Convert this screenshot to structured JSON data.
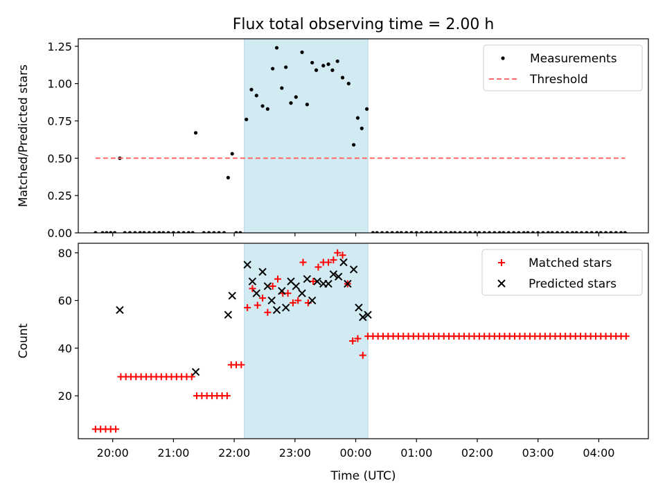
{
  "figure": {
    "title": "Flux total observing time = 2.00 h",
    "xlabel": "Time (UTC)"
  },
  "colors": {
    "highlight": "#add8e6",
    "measurements": "#000000",
    "threshold": "#ff6666",
    "matched": "#ff0000",
    "predicted": "#000000"
  },
  "chart_data": [
    {
      "type": "scatter",
      "ylabel": "Matched/Predicted stars",
      "ylim": [
        0,
        1.3
      ],
      "yticks": [
        0.0,
        0.25,
        0.5,
        0.75,
        1.0,
        1.25
      ],
      "ytick_labels": [
        "0.00",
        "0.25",
        "0.50",
        "0.75",
        "1.00",
        "1.25"
      ],
      "xlim": [
        "19:26",
        "04:49"
      ],
      "xticks": [
        "20:00",
        "21:00",
        "22:00",
        "23:00",
        "00:00",
        "01:00",
        "02:00",
        "03:00",
        "04:00"
      ],
      "xtick_labels_shown": false,
      "shaded_span": [
        "22:10",
        "00:12"
      ],
      "legend": {
        "placement": "upper right",
        "entries": [
          "Measurements",
          "Threshold"
        ]
      },
      "series": [
        {
          "name": "Measurements",
          "marker": "dot",
          "points": [
            [
              "19:43",
              0
            ],
            [
              "19:50",
              0
            ],
            [
              "19:54",
              0
            ],
            [
              "19:58",
              0
            ],
            [
              "20:02",
              0
            ],
            [
              "20:07",
              0.5
            ],
            [
              "20:12",
              0
            ],
            [
              "20:17",
              0
            ],
            [
              "20:22",
              0
            ],
            [
              "20:27",
              0
            ],
            [
              "20:31",
              0
            ],
            [
              "20:36",
              0
            ],
            [
              "20:41",
              0
            ],
            [
              "20:46",
              0
            ],
            [
              "20:50",
              0
            ],
            [
              "20:55",
              0
            ],
            [
              "21:00",
              0
            ],
            [
              "21:05",
              0
            ],
            [
              "21:10",
              0
            ],
            [
              "21:15",
              0
            ],
            [
              "21:19",
              0
            ],
            [
              "21:22",
              0.67
            ],
            [
              "21:30",
              0
            ],
            [
              "21:35",
              0
            ],
            [
              "21:40",
              0
            ],
            [
              "21:45",
              0
            ],
            [
              "21:50",
              0
            ],
            [
              "21:54",
              0.37
            ],
            [
              "21:58",
              0.53
            ],
            [
              "22:02",
              0
            ],
            [
              "22:06",
              0
            ],
            [
              "22:12",
              0.76
            ],
            [
              "22:17",
              0.96
            ],
            [
              "22:22",
              0.92
            ],
            [
              "22:28",
              0.85
            ],
            [
              "22:33",
              0.83
            ],
            [
              "22:38",
              1.1
            ],
            [
              "22:42",
              1.24
            ],
            [
              "22:47",
              0.97
            ],
            [
              "22:51",
              1.11
            ],
            [
              "22:56",
              0.87
            ],
            [
              "23:01",
              0.91
            ],
            [
              "23:07",
              1.21
            ],
            [
              "23:12",
              0.86
            ],
            [
              "23:17",
              1.14
            ],
            [
              "23:21",
              1.09
            ],
            [
              "23:28",
              1.12
            ],
            [
              "23:33",
              1.13
            ],
            [
              "23:37",
              1.09
            ],
            [
              "23:42",
              1.15
            ],
            [
              "23:47",
              1.04
            ],
            [
              "23:53",
              1.0
            ],
            [
              "23:58",
              0.59
            ],
            [
              "00:02",
              0.77
            ],
            [
              "00:06",
              0.7
            ],
            [
              "00:11",
              0.83
            ],
            [
              "00:17",
              0
            ],
            [
              "00:21",
              0
            ],
            [
              "00:26",
              0
            ],
            [
              "00:31",
              0
            ],
            [
              "00:36",
              0
            ],
            [
              "00:41",
              0
            ],
            [
              "00:45",
              0
            ],
            [
              "00:50",
              0
            ],
            [
              "00:55",
              0
            ],
            [
              "01:00",
              0
            ],
            [
              "01:05",
              0
            ],
            [
              "01:10",
              0
            ],
            [
              "01:14",
              0
            ],
            [
              "01:19",
              0
            ],
            [
              "01:24",
              0
            ],
            [
              "01:29",
              0
            ],
            [
              "01:34",
              0
            ],
            [
              "01:38",
              0
            ],
            [
              "01:43",
              0
            ],
            [
              "01:48",
              0
            ],
            [
              "01:53",
              0
            ],
            [
              "01:58",
              0
            ],
            [
              "02:02",
              0
            ],
            [
              "02:07",
              0
            ],
            [
              "02:12",
              0
            ],
            [
              "02:17",
              0
            ],
            [
              "02:22",
              0
            ],
            [
              "02:26",
              0
            ],
            [
              "02:31",
              0
            ],
            [
              "02:36",
              0
            ],
            [
              "02:41",
              0
            ],
            [
              "02:46",
              0
            ],
            [
              "02:50",
              0
            ],
            [
              "02:55",
              0
            ],
            [
              "03:00",
              0
            ],
            [
              "03:05",
              0
            ],
            [
              "03:10",
              0
            ],
            [
              "03:14",
              0
            ],
            [
              "03:19",
              0
            ],
            [
              "03:24",
              0
            ],
            [
              "03:29",
              0
            ],
            [
              "03:34",
              0
            ],
            [
              "03:38",
              0
            ],
            [
              "03:43",
              0
            ],
            [
              "03:48",
              0
            ],
            [
              "03:53",
              0
            ],
            [
              "03:58",
              0
            ],
            [
              "04:02",
              0
            ],
            [
              "04:07",
              0
            ],
            [
              "04:12",
              0
            ],
            [
              "04:17",
              0
            ],
            [
              "04:22",
              0
            ],
            [
              "04:26",
              0
            ]
          ]
        },
        {
          "name": "Threshold",
          "line": "dashed",
          "points": [
            [
              "19:43",
              0.5
            ],
            [
              "04:26",
              0.5
            ]
          ]
        }
      ]
    },
    {
      "type": "scatter",
      "ylabel": "Count",
      "ylim": [
        2,
        84
      ],
      "yticks": [
        20,
        40,
        60,
        80
      ],
      "ytick_labels": [
        "20",
        "40",
        "60",
        "80"
      ],
      "xlim": [
        "19:26",
        "04:49"
      ],
      "xticks": [
        "20:00",
        "21:00",
        "22:00",
        "23:00",
        "00:00",
        "01:00",
        "02:00",
        "03:00",
        "04:00"
      ],
      "xtick_labels": [
        "20:00",
        "21:00",
        "22:00",
        "23:00",
        "00:00",
        "01:00",
        "02:00",
        "03:00",
        "04:00"
      ],
      "shaded_span": [
        "22:10",
        "00:12"
      ],
      "legend": {
        "placement": "upper right",
        "entries": [
          "Matched stars",
          "Predicted stars"
        ]
      },
      "series": [
        {
          "name": "Matched stars",
          "marker": "plus",
          "points": [
            [
              "19:43",
              6
            ],
            [
              "19:48",
              6
            ],
            [
              "19:53",
              6
            ],
            [
              "19:58",
              6
            ],
            [
              "20:03",
              6
            ],
            [
              "20:08",
              28
            ],
            [
              "20:13",
              28
            ],
            [
              "20:18",
              28
            ],
            [
              "20:23",
              28
            ],
            [
              "20:28",
              28
            ],
            [
              "20:33",
              28
            ],
            [
              "20:38",
              28
            ],
            [
              "20:43",
              28
            ],
            [
              "20:48",
              28
            ],
            [
              "20:53",
              28
            ],
            [
              "20:58",
              28
            ],
            [
              "21:03",
              28
            ],
            [
              "21:08",
              28
            ],
            [
              "21:13",
              28
            ],
            [
              "21:18",
              28
            ],
            [
              "21:23",
              20
            ],
            [
              "21:28",
              20
            ],
            [
              "21:33",
              20
            ],
            [
              "21:38",
              20
            ],
            [
              "21:43",
              20
            ],
            [
              "21:48",
              20
            ],
            [
              "21:53",
              20
            ],
            [
              "21:57",
              33
            ],
            [
              "22:02",
              33
            ],
            [
              "22:07",
              33
            ],
            [
              "22:13",
              57
            ],
            [
              "22:18",
              65
            ],
            [
              "22:23",
              58
            ],
            [
              "22:28",
              61
            ],
            [
              "22:33",
              55
            ],
            [
              "22:38",
              66
            ],
            [
              "22:43",
              69
            ],
            [
              "22:48",
              63
            ],
            [
              "22:53",
              63
            ],
            [
              "22:58",
              59
            ],
            [
              "23:03",
              60
            ],
            [
              "23:08",
              76
            ],
            [
              "23:13",
              59
            ],
            [
              "23:18",
              68
            ],
            [
              "23:23",
              74
            ],
            [
              "23:28",
              76
            ],
            [
              "23:33",
              76
            ],
            [
              "23:38",
              77
            ],
            [
              "23:42",
              80
            ],
            [
              "23:47",
              79
            ],
            [
              "23:52",
              67
            ],
            [
              "23:57",
              43
            ],
            [
              "00:02",
              44
            ],
            [
              "00:07",
              37
            ],
            [
              "00:12",
              45
            ],
            [
              "00:17",
              45
            ],
            [
              "00:22",
              45
            ],
            [
              "00:27",
              45
            ],
            [
              "00:32",
              45
            ],
            [
              "00:37",
              45
            ],
            [
              "00:42",
              45
            ],
            [
              "00:47",
              45
            ],
            [
              "00:52",
              45
            ],
            [
              "00:57",
              45
            ],
            [
              "01:02",
              45
            ],
            [
              "01:07",
              45
            ],
            [
              "01:12",
              45
            ],
            [
              "01:17",
              45
            ],
            [
              "01:22",
              45
            ],
            [
              "01:27",
              45
            ],
            [
              "01:32",
              45
            ],
            [
              "01:37",
              45
            ],
            [
              "01:42",
              45
            ],
            [
              "01:47",
              45
            ],
            [
              "01:52",
              45
            ],
            [
              "01:57",
              45
            ],
            [
              "02:02",
              45
            ],
            [
              "02:07",
              45
            ],
            [
              "02:12",
              45
            ],
            [
              "02:17",
              45
            ],
            [
              "02:22",
              45
            ],
            [
              "02:27",
              45
            ],
            [
              "02:32",
              45
            ],
            [
              "02:37",
              45
            ],
            [
              "02:42",
              45
            ],
            [
              "02:47",
              45
            ],
            [
              "02:52",
              45
            ],
            [
              "02:57",
              45
            ],
            [
              "03:02",
              45
            ],
            [
              "03:07",
              45
            ],
            [
              "03:12",
              45
            ],
            [
              "03:17",
              45
            ],
            [
              "03:22",
              45
            ],
            [
              "03:27",
              45
            ],
            [
              "03:32",
              45
            ],
            [
              "03:37",
              45
            ],
            [
              "03:42",
              45
            ],
            [
              "03:47",
              45
            ],
            [
              "03:52",
              45
            ],
            [
              "03:57",
              45
            ],
            [
              "04:02",
              45
            ],
            [
              "04:07",
              45
            ],
            [
              "04:12",
              45
            ],
            [
              "04:17",
              45
            ],
            [
              "04:22",
              45
            ],
            [
              "04:27",
              45
            ]
          ]
        },
        {
          "name": "Predicted stars",
          "marker": "x",
          "points": [
            [
              "20:07",
              56
            ],
            [
              "21:22",
              30
            ],
            [
              "21:54",
              54
            ],
            [
              "21:58",
              62
            ],
            [
              "22:13",
              75
            ],
            [
              "22:18",
              68
            ],
            [
              "22:22",
              63
            ],
            [
              "22:28",
              72
            ],
            [
              "22:33",
              66
            ],
            [
              "22:37",
              60
            ],
            [
              "22:42",
              56
            ],
            [
              "22:47",
              64
            ],
            [
              "22:51",
              57
            ],
            [
              "22:56",
              68
            ],
            [
              "23:01",
              66
            ],
            [
              "23:07",
              63
            ],
            [
              "23:12",
              69
            ],
            [
              "23:17",
              60
            ],
            [
              "23:22",
              68
            ],
            [
              "23:28",
              67
            ],
            [
              "23:33",
              67
            ],
            [
              "23:38",
              71
            ],
            [
              "23:43",
              70
            ],
            [
              "23:48",
              76
            ],
            [
              "23:52",
              67
            ],
            [
              "23:58",
              73
            ],
            [
              "00:03",
              57
            ],
            [
              "00:07",
              53
            ],
            [
              "00:12",
              54
            ]
          ]
        }
      ]
    }
  ]
}
